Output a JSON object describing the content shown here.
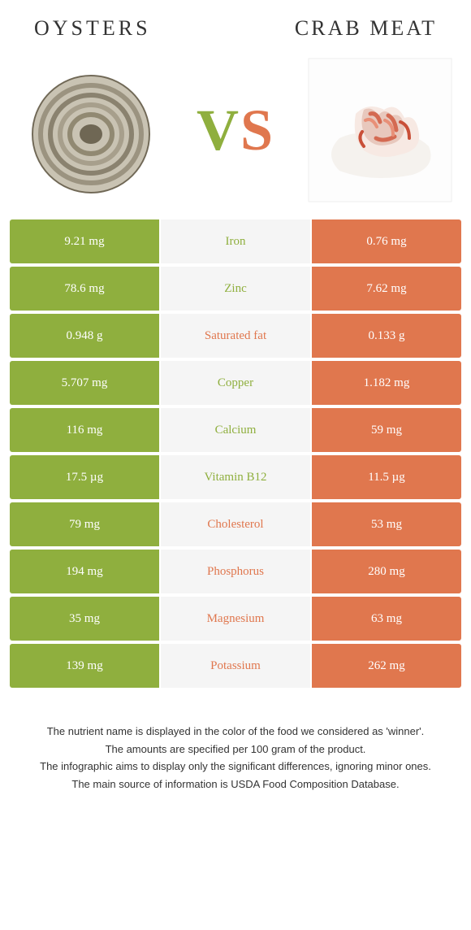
{
  "header": {
    "left": "Oysters",
    "right": "Crab meat"
  },
  "vs": {
    "v": "V",
    "s": "S"
  },
  "colors": {
    "green": "#8faf3e",
    "orange": "#e0774e",
    "mid_bg": "#f5f5f5"
  },
  "rows": [
    {
      "left": "9.21 mg",
      "mid": "Iron",
      "right": "0.76 mg",
      "winner": "left"
    },
    {
      "left": "78.6 mg",
      "mid": "Zinc",
      "right": "7.62 mg",
      "winner": "left"
    },
    {
      "left": "0.948 g",
      "mid": "Saturated fat",
      "right": "0.133 g",
      "winner": "right"
    },
    {
      "left": "5.707 mg",
      "mid": "Copper",
      "right": "1.182 mg",
      "winner": "left"
    },
    {
      "left": "116 mg",
      "mid": "Calcium",
      "right": "59 mg",
      "winner": "left"
    },
    {
      "left": "17.5 µg",
      "mid": "Vitamin B12",
      "right": "11.5 µg",
      "winner": "left"
    },
    {
      "left": "79 mg",
      "mid": "Cholesterol",
      "right": "53 mg",
      "winner": "right"
    },
    {
      "left": "194 mg",
      "mid": "Phosphorus",
      "right": "280 mg",
      "winner": "right"
    },
    {
      "left": "35 mg",
      "mid": "Magnesium",
      "right": "63 mg",
      "winner": "right"
    },
    {
      "left": "139 mg",
      "mid": "Potassium",
      "right": "262 mg",
      "winner": "right"
    }
  ],
  "footer": {
    "l1": "The nutrient name is displayed in the color of the food we considered as 'winner'.",
    "l2": "The amounts are specified per 100 gram of the product.",
    "l3": "The infographic aims to display only the significant differences, ignoring minor ones.",
    "l4": "The main source of information is USDA Food Composition Database."
  }
}
